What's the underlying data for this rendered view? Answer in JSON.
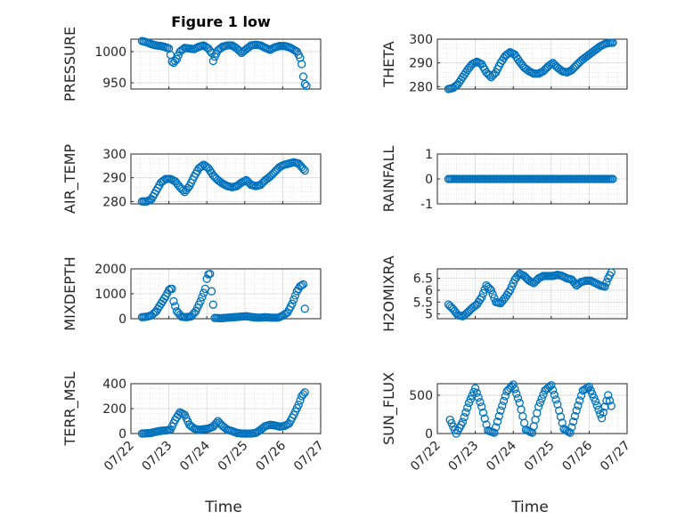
{
  "title": "Figure 1 low",
  "colors": {
    "marker": "#0072BD",
    "axis": "#262626",
    "grid": "#d9d9d9"
  },
  "chart_data": [
    {
      "type": "scatter",
      "id": "pressure",
      "ylabel": "PRESSURE",
      "ylim": [
        940,
        1020
      ],
      "yticks": [
        950,
        1000
      ],
      "x": [
        "07/22 07:00",
        "07/22 10:00",
        "07/22 13:00",
        "07/22 16:00",
        "07/22 19:00",
        "07/22 21:00",
        "07/23 00:00",
        "07/23 01:00",
        "07/23 02:00",
        "07/23 03:00",
        "07/23 05:00",
        "07/23 07:00",
        "07/23 10:00",
        "07/23 13:00",
        "07/23 16:00",
        "07/23 19:00",
        "07/23 22:00",
        "07/24 01:00",
        "07/24 03:00",
        "07/24 04:00",
        "07/24 05:00",
        "07/24 07:00",
        "07/24 10:00",
        "07/24 13:00",
        "07/24 16:00",
        "07/24 19:00",
        "07/24 22:00",
        "07/25 01:00",
        "07/25 04:00",
        "07/25 07:00",
        "07/25 10:00",
        "07/25 13:00",
        "07/25 16:00",
        "07/25 19:00",
        "07/25 22:00",
        "07/26 01:00",
        "07/26 03:00",
        "07/26 05:00",
        "07/26 07:00",
        "07/26 09:00",
        "07/26 11:00",
        "07/26 12:00",
        "07/26 13:00",
        "07/26 14:00",
        "07/26 15:00"
      ],
      "y": [
        1017,
        1015,
        1012,
        1010,
        1009,
        1008,
        1005,
        995,
        984,
        982,
        988,
        1000,
        1006,
        1005,
        1004,
        1008,
        1010,
        1005,
        998,
        985,
        992,
        1002,
        1008,
        1010,
        1010,
        1005,
        998,
        1004,
        1010,
        1011,
        1010,
        1006,
        1003,
        1007,
        1009,
        1009,
        1008,
        1006,
        1003,
        1000,
        990,
        980,
        960,
        948,
        945
      ]
    },
    {
      "type": "scatter",
      "id": "theta",
      "ylabel": "THETA",
      "ylim": [
        279,
        300
      ],
      "yticks": [
        280,
        290,
        300
      ],
      "x": [
        "07/22 07:00",
        "07/22 10:00",
        "07/22 13:00",
        "07/22 16:00",
        "07/22 19:00",
        "07/22 22:00",
        "07/23 01:00",
        "07/23 04:00",
        "07/23 07:00",
        "07/23 10:00",
        "07/23 13:00",
        "07/23 16:00",
        "07/23 19:00",
        "07/23 22:00",
        "07/24 01:00",
        "07/24 04:00",
        "07/24 07:00",
        "07/24 10:00",
        "07/24 13:00",
        "07/24 16:00",
        "07/24 19:00",
        "07/24 22:00",
        "07/25 01:00",
        "07/25 04:00",
        "07/25 07:00",
        "07/25 10:00",
        "07/25 13:00",
        "07/25 16:00",
        "07/25 19:00",
        "07/25 22:00",
        "07/26 01:00",
        "07/26 04:00",
        "07/26 07:00",
        "07/26 10:00",
        "07/26 13:00",
        "07/26 15:00"
      ],
      "y": [
        279,
        279.5,
        281,
        284,
        287,
        289.5,
        290.5,
        289.5,
        286,
        284,
        286,
        290,
        293,
        294.5,
        293.5,
        290.5,
        288,
        286.5,
        285.5,
        285.5,
        286.5,
        288.5,
        290,
        288,
        286.5,
        286,
        287,
        289,
        291,
        292.5,
        294,
        295.5,
        297,
        298,
        298.5,
        298.5
      ]
    },
    {
      "type": "scatter",
      "id": "air_temp",
      "ylabel": "AIR_TEMP",
      "ylim": [
        279,
        300
      ],
      "yticks": [
        280,
        290,
        300
      ],
      "x": [
        "07/22 07:00",
        "07/22 10:00",
        "07/22 13:00",
        "07/22 16:00",
        "07/22 19:00",
        "07/22 22:00",
        "07/23 01:00",
        "07/23 04:00",
        "07/23 07:00",
        "07/23 10:00",
        "07/23 13:00",
        "07/23 16:00",
        "07/23 19:00",
        "07/23 22:00",
        "07/24 01:00",
        "07/24 04:00",
        "07/24 07:00",
        "07/24 10:00",
        "07/24 13:00",
        "07/24 16:00",
        "07/24 19:00",
        "07/24 22:00",
        "07/25 01:00",
        "07/25 04:00",
        "07/25 07:00",
        "07/25 10:00",
        "07/25 13:00",
        "07/25 16:00",
        "07/25 19:00",
        "07/25 22:00",
        "07/26 01:00",
        "07/26 04:00",
        "07/26 07:00",
        "07/26 10:00",
        "07/26 12:00",
        "07/26 14:00"
      ],
      "y": [
        280,
        280,
        281,
        284.5,
        288,
        289.5,
        289.5,
        288.5,
        286,
        284,
        286.5,
        290.5,
        294,
        295.5,
        294,
        291,
        289,
        287.5,
        286.5,
        286,
        286.5,
        288,
        289,
        287,
        286.5,
        287,
        289,
        290.5,
        292.5,
        294.5,
        295.5,
        296,
        296.5,
        296,
        294.5,
        293
      ]
    },
    {
      "type": "scatter",
      "id": "rainfall",
      "ylabel": "RAINFALL",
      "ylim": [
        -1,
        1
      ],
      "yticks": [
        -1,
        0,
        1
      ],
      "x": [
        "07/22 07:00",
        "07/22 12:00",
        "07/22 18:00",
        "07/23 00:00",
        "07/23 06:00",
        "07/23 12:00",
        "07/23 18:00",
        "07/24 00:00",
        "07/24 06:00",
        "07/24 12:00",
        "07/24 18:00",
        "07/25 00:00",
        "07/25 06:00",
        "07/25 12:00",
        "07/25 18:00",
        "07/26 00:00",
        "07/26 06:00",
        "07/26 12:00",
        "07/26 15:00"
      ],
      "y": [
        0,
        0,
        0,
        0,
        0,
        0,
        0,
        0,
        0,
        0,
        0,
        0,
        0,
        0,
        0,
        0,
        0,
        0,
        0
      ]
    },
    {
      "type": "scatter",
      "id": "mixdepth",
      "ylabel": "MIXDEPTH",
      "ylim": [
        0,
        2000
      ],
      "yticks": [
        0,
        1000,
        2000
      ],
      "x": [
        "07/22 07:00",
        "07/22 10:00",
        "07/22 13:00",
        "07/22 16:00",
        "07/22 19:00",
        "07/22 22:00",
        "07/23 00:00",
        "07/23 01:00",
        "07/23 02:00",
        "07/23 03:00",
        "07/23 05:00",
        "07/23 08:00",
        "07/23 11:00",
        "07/23 14:00",
        "07/23 17:00",
        "07/23 20:00",
        "07/23 23:00",
        "07/24 00:00",
        "07/24 01:00",
        "07/24 02:00",
        "07/24 03:00",
        "07/24 05:00",
        "07/24 09:00",
        "07/24 13:00",
        "07/24 17:00",
        "07/24 21:00",
        "07/25 01:00",
        "07/25 05:00",
        "07/25 09:00",
        "07/25 13:00",
        "07/25 17:00",
        "07/25 21:00",
        "07/26 00:00",
        "07/26 03:00",
        "07/26 06:00",
        "07/26 09:00",
        "07/26 11:00",
        "07/26 13:00",
        "07/26 14:00"
      ],
      "y": [
        60,
        80,
        130,
        300,
        600,
        900,
        1150,
        1200,
        1200,
        700,
        300,
        80,
        60,
        90,
        300,
        700,
        1200,
        1600,
        1780,
        1800,
        1100,
        30,
        20,
        40,
        60,
        80,
        100,
        60,
        40,
        60,
        40,
        40,
        120,
        250,
        600,
        1100,
        1300,
        1380,
        400
      ]
    },
    {
      "type": "scatter",
      "id": "h2omixra",
      "ylabel": "H2OMIXRA",
      "ylim": [
        4.8,
        6.9
      ],
      "yticks": [
        5,
        5.5,
        6,
        6.5
      ],
      "x": [
        "07/22 07:00",
        "07/22 10:00",
        "07/22 13:00",
        "07/22 16:00",
        "07/22 19:00",
        "07/22 22:00",
        "07/23 01:00",
        "07/23 04:00",
        "07/23 07:00",
        "07/23 10:00",
        "07/23 13:00",
        "07/23 16:00",
        "07/23 19:00",
        "07/23 22:00",
        "07/24 01:00",
        "07/24 04:00",
        "07/24 07:00",
        "07/24 10:00",
        "07/24 13:00",
        "07/24 16:00",
        "07/24 19:00",
        "07/24 22:00",
        "07/25 01:00",
        "07/25 04:00",
        "07/25 07:00",
        "07/25 10:00",
        "07/25 13:00",
        "07/25 16:00",
        "07/25 19:00",
        "07/25 22:00",
        "07/26 01:00",
        "07/26 04:00",
        "07/26 07:00",
        "07/26 10:00",
        "07/26 12:00",
        "07/26 14:00"
      ],
      "y": [
        5.4,
        5.2,
        4.95,
        4.9,
        5.05,
        5.25,
        5.4,
        5.7,
        6.2,
        6.0,
        5.5,
        5.45,
        5.7,
        6.0,
        6.45,
        6.7,
        6.6,
        6.4,
        6.3,
        6.5,
        6.6,
        6.6,
        6.6,
        6.65,
        6.6,
        6.5,
        6.45,
        6.2,
        6.35,
        6.4,
        6.4,
        6.3,
        6.2,
        6.15,
        6.5,
        6.75
      ]
    },
    {
      "type": "scatter",
      "id": "terr_msl",
      "ylabel": "TERR_MSL",
      "ylim": [
        0,
        400
      ],
      "yticks": [
        0,
        200,
        400
      ],
      "x": [
        "07/22 07:00",
        "07/22 10:00",
        "07/22 13:00",
        "07/22 16:00",
        "07/22 19:00",
        "07/22 22:00",
        "07/23 01:00",
        "07/23 04:00",
        "07/23 07:00",
        "07/23 10:00",
        "07/23 13:00",
        "07/23 16:00",
        "07/23 19:00",
        "07/23 22:00",
        "07/24 01:00",
        "07/24 04:00",
        "07/24 07:00",
        "07/24 10:00",
        "07/24 13:00",
        "07/24 16:00",
        "07/24 19:00",
        "07/24 22:00",
        "07/25 01:00",
        "07/25 04:00",
        "07/25 07:00",
        "07/25 10:00",
        "07/25 13:00",
        "07/25 16:00",
        "07/25 19:00",
        "07/25 22:00",
        "07/26 01:00",
        "07/26 04:00",
        "07/26 07:00",
        "07/26 10:00",
        "07/26 12:00",
        "07/26 14:00"
      ],
      "y": [
        0,
        2,
        5,
        15,
        22,
        25,
        30,
        110,
        170,
        150,
        70,
        40,
        30,
        35,
        40,
        55,
        100,
        60,
        30,
        20,
        5,
        0,
        0,
        0,
        5,
        30,
        60,
        70,
        65,
        55,
        60,
        80,
        150,
        230,
        300,
        330
      ]
    },
    {
      "type": "scatter",
      "id": "sun_flux",
      "ylabel": "SUN_FLUX",
      "ylim": [
        0,
        650
      ],
      "yticks": [
        0,
        500
      ],
      "x": [
        "07/22 08:00",
        "07/22 12:00",
        "07/22 16:00",
        "07/22 20:00",
        "07/23 00:00",
        "07/23 04:00",
        "07/23 08:00",
        "07/23 12:00",
        "07/23 16:00",
        "07/23 20:00",
        "07/24 00:00",
        "07/24 04:00",
        "07/24 08:00",
        "07/24 12:00",
        "07/24 16:00",
        "07/24 20:00",
        "07/25 00:00",
        "07/25 04:00",
        "07/25 08:00",
        "07/25 12:00",
        "07/25 16:00",
        "07/25 20:00",
        "07/26 00:00",
        "07/26 04:00",
        "07/26 08:00",
        "07/26 12:00",
        "07/26 14:00"
      ],
      "y": [
        180,
        0,
        150,
        400,
        590,
        350,
        40,
        10,
        300,
        550,
        640,
        400,
        50,
        10,
        350,
        560,
        630,
        380,
        60,
        10,
        300,
        560,
        610,
        420,
        200,
        500,
        360
      ]
    }
  ],
  "x_axis": {
    "xlabel": "Time",
    "ticks": [
      "07/22",
      "07/23",
      "07/24",
      "07/25",
      "07/26",
      "07/27"
    ],
    "range": [
      "07/22 00:00",
      "07/27 00:00"
    ]
  }
}
